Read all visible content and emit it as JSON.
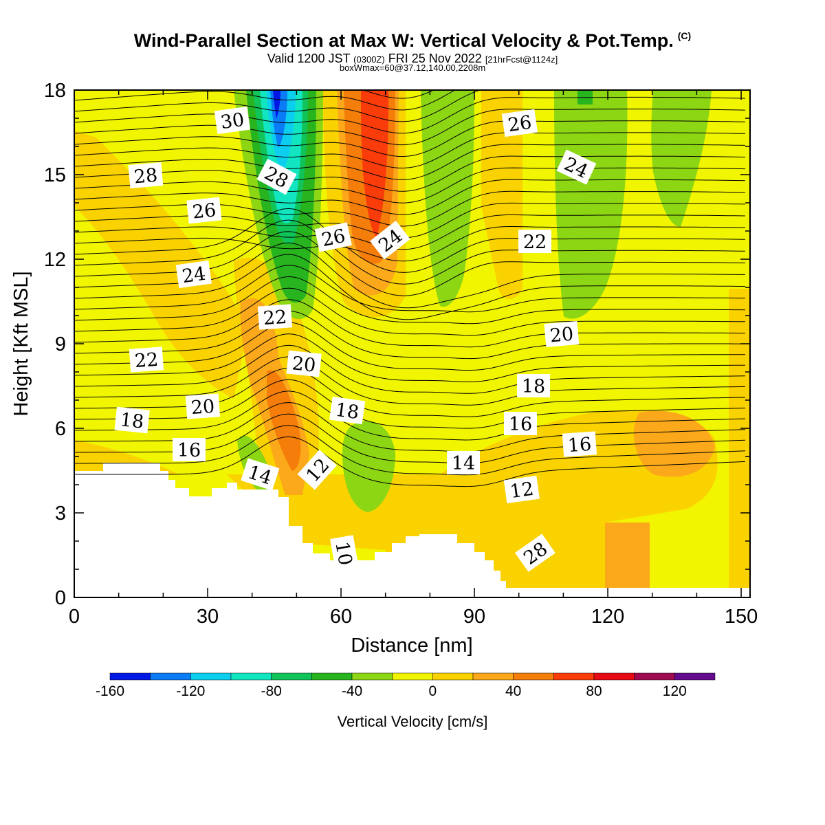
{
  "title": {
    "main": "Wind-Parallel Section at Max W: Vertical Velocity & Pot.Temp.",
    "copyright": "(C)",
    "valid_prefix": "Valid 1200 JST",
    "valid_utc": "(0300Z)",
    "valid_date": "FRI 25 Nov 2022",
    "forecast": "[21hrFcst@1124z]",
    "box_info": "boxWmax=60@37.12,140.00,2208m"
  },
  "chart_data": {
    "type": "heatmap",
    "xlabel": "Distance [nm]",
    "ylabel": "Height [Kft MSL]",
    "xlim": [
      0,
      152
    ],
    "ylim": [
      0,
      18
    ],
    "xticks": [
      "0",
      "30",
      "60",
      "90",
      "120",
      "150"
    ],
    "yticks": [
      "0",
      "3",
      "6",
      "9",
      "12",
      "15",
      "18"
    ],
    "colorbar": {
      "title": "Vertical Velocity [cm/s]",
      "levels": [
        -160,
        -140,
        -120,
        -100,
        -80,
        -60,
        -40,
        -20,
        0,
        20,
        40,
        60,
        80,
        100,
        120,
        140
      ],
      "colors": [
        "#0018e6",
        "#0a7cf5",
        "#0ccff0",
        "#12e6c0",
        "#10c45a",
        "#28b41e",
        "#8cd614",
        "#f2f500",
        "#fad200",
        "#fba91a",
        "#f57d0a",
        "#fa3c0a",
        "#e60a14",
        "#a00a50",
        "#640a8c"
      ],
      "tick_labels": [
        "-160",
        "-120",
        "-80",
        "-40",
        "0",
        "40",
        "80",
        "120"
      ]
    },
    "contour_labels": [
      "30",
      "28",
      "28",
      "26",
      "26",
      "24",
      "24",
      "22",
      "22",
      "20",
      "20",
      "18",
      "18",
      "16",
      "16",
      "14",
      "12",
      "12",
      "10",
      "28",
      "26",
      "24",
      "22",
      "20",
      "18",
      "16",
      "14"
    ]
  }
}
